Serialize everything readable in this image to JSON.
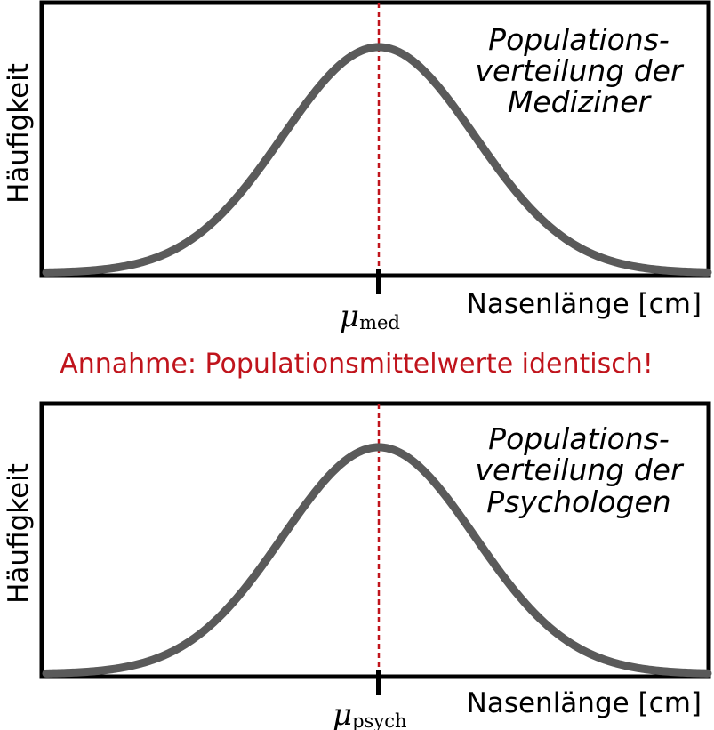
{
  "chart_data": [
    {
      "type": "line",
      "distribution": "normal",
      "mean_marker": "μ",
      "mean_subscript": "med",
      "xlabel": "Nasenlänge [cm]",
      "ylabel": "Häufigkeit",
      "annotation_lines": [
        "Populations-",
        "verteilung der",
        "Mediziner"
      ],
      "curve_color": "#5a5a5a",
      "mean_line_color": "#c0141c",
      "grid": false
    },
    {
      "type": "line",
      "distribution": "normal",
      "mean_marker": "μ",
      "mean_subscript": "psych",
      "xlabel": "Nasenlänge [cm]",
      "ylabel": "Häufigkeit",
      "annotation_lines": [
        "Populations-",
        "verteilung der",
        "Psychologen"
      ],
      "curve_color": "#5a5a5a",
      "mean_line_color": "#c0141c",
      "grid": false
    }
  ],
  "assumption_text": "Annahme: Populationsmittelwerte identisch!"
}
